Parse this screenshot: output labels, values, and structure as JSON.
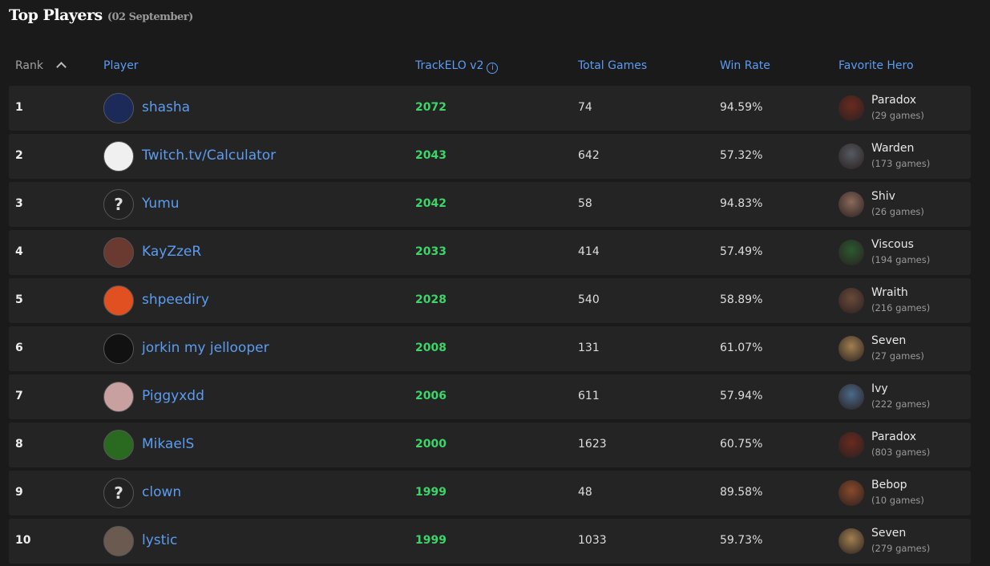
{
  "header": {
    "title": "Top Players",
    "date": "(02 September)"
  },
  "columns": {
    "rank": "Rank",
    "player": "Player",
    "elo": "TrackELO v2",
    "total_games": "Total Games",
    "win_rate": "Win Rate",
    "favorite_hero": "Favorite Hero"
  },
  "rows": [
    {
      "rank": "1",
      "player": "shasha",
      "elo": "2072",
      "games": "74",
      "win_rate": "94.59%",
      "hero": "Paradox",
      "hero_games": "(29 games)",
      "avatar": "image"
    },
    {
      "rank": "2",
      "player": "Twitch.tv/Calculator",
      "elo": "2043",
      "games": "642",
      "win_rate": "57.32%",
      "hero": "Warden",
      "hero_games": "(173 games)",
      "avatar": "image"
    },
    {
      "rank": "3",
      "player": "Yumu",
      "elo": "2042",
      "games": "58",
      "win_rate": "94.83%",
      "hero": "Shiv",
      "hero_games": "(26 games)",
      "avatar": "?"
    },
    {
      "rank": "4",
      "player": "KayZzeR",
      "elo": "2033",
      "games": "414",
      "win_rate": "57.49%",
      "hero": "Viscous",
      "hero_games": "(194 games)",
      "avatar": "image"
    },
    {
      "rank": "5",
      "player": "shpeediry",
      "elo": "2028",
      "games": "540",
      "win_rate": "58.89%",
      "hero": "Wraith",
      "hero_games": "(216 games)",
      "avatar": "image"
    },
    {
      "rank": "6",
      "player": "jorkin my jellooper",
      "elo": "2008",
      "games": "131",
      "win_rate": "61.07%",
      "hero": "Seven",
      "hero_games": "(27 games)",
      "avatar": "image"
    },
    {
      "rank": "7",
      "player": "Piggyxdd",
      "elo": "2006",
      "games": "611",
      "win_rate": "57.94%",
      "hero": "Ivy",
      "hero_games": "(222 games)",
      "avatar": "image"
    },
    {
      "rank": "8",
      "player": "MikaelS",
      "elo": "2000",
      "games": "1623",
      "win_rate": "60.75%",
      "hero": "Paradox",
      "hero_games": "(803 games)",
      "avatar": "image"
    },
    {
      "rank": "9",
      "player": "clown",
      "elo": "1999",
      "games": "48",
      "win_rate": "89.58%",
      "hero": "Bebop",
      "hero_games": "(10 games)",
      "avatar": "?"
    },
    {
      "rank": "10",
      "player": "lystic",
      "elo": "1999",
      "games": "1033",
      "win_rate": "59.73%",
      "hero": "Seven",
      "hero_games": "(279 games)",
      "avatar": "image"
    }
  ],
  "colors": {
    "link": "#5b9cf0",
    "elo": "#3dd46a",
    "row_bg": "#252424",
    "page_bg": "#1b1a1a"
  }
}
